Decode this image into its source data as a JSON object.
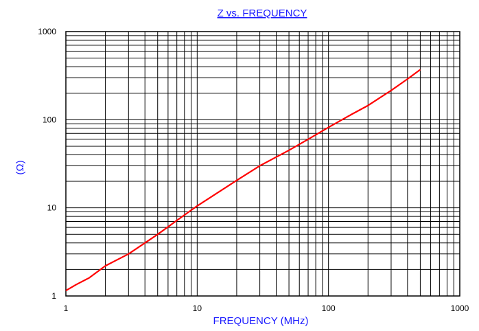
{
  "chart_data": {
    "type": "line",
    "title": "Z  vs.  FREQUENCY",
    "xlabel": "FREQUENCY  (MHz)",
    "ylabel": "(Ω)",
    "x_scale": "log",
    "y_scale": "log",
    "xlim": [
      1,
      1000
    ],
    "ylim": [
      1,
      1000
    ],
    "x_ticks": [
      "1",
      "10",
      "100",
      "1000"
    ],
    "y_ticks": [
      "1",
      "10",
      "100",
      "1000"
    ],
    "grid": true,
    "series": [
      {
        "color": "#ff0000",
        "x": [
          1,
          1.2,
          1.5,
          2,
          3,
          5,
          7,
          10,
          20,
          30,
          50,
          70,
          100,
          150,
          200,
          300,
          400,
          500
        ],
        "y": [
          1.15,
          1.35,
          1.6,
          2.2,
          3.0,
          5.0,
          7.2,
          10.5,
          20.5,
          30,
          45,
          60,
          82,
          115,
          145,
          215,
          290,
          370
        ]
      }
    ]
  },
  "colors": {
    "text_accent": "#1a1aff",
    "line": "#ff0000",
    "grid": "#000000"
  }
}
